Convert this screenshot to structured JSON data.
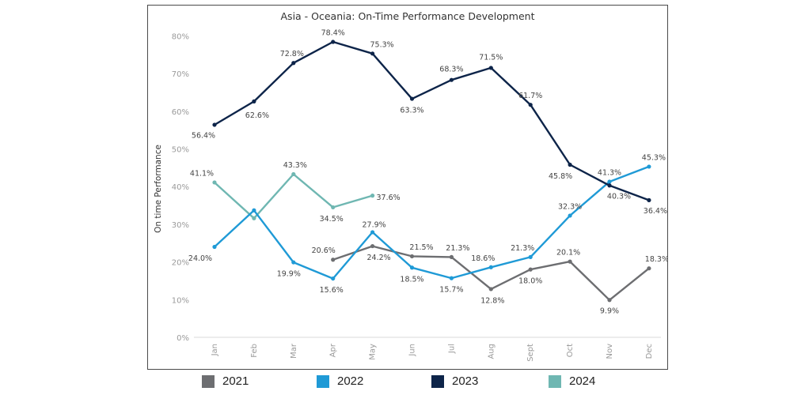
{
  "chart_data": {
    "type": "line",
    "title": "Asia - Oceania: On-Time Performance Development",
    "ylabel": "On time Performance",
    "xlabel": "",
    "categories": [
      "Jan",
      "Feb",
      "Mar",
      "Apr",
      "May",
      "Jun",
      "Jul",
      "Aug",
      "Sept",
      "Oct",
      "Nov",
      "Dec"
    ],
    "yticks": [
      "0%",
      "10%",
      "20%",
      "30%",
      "40%",
      "50%",
      "60%",
      "70%",
      "80%"
    ],
    "ylim": [
      0,
      85
    ],
    "grid": false,
    "legend_position": "bottom",
    "series": [
      {
        "name": "2021",
        "color": "#6d6e71",
        "values": [
          null,
          null,
          null,
          20.6,
          24.2,
          21.5,
          21.3,
          12.8,
          18.0,
          20.1,
          9.9,
          18.3
        ],
        "labels": [
          null,
          null,
          null,
          "20.6%",
          "24.2%",
          "21.5%",
          "21.3%",
          "12.8%",
          "18.0%",
          "20.1%",
          "9.9%",
          "18.3%"
        ]
      },
      {
        "name": "2022",
        "color": "#1f9ad6",
        "values": [
          24.0,
          33.7,
          19.9,
          15.6,
          27.9,
          18.5,
          15.7,
          18.6,
          21.3,
          32.3,
          41.3,
          45.3
        ],
        "labels": [
          "24.0%",
          null,
          "19.9%",
          "15.6%",
          "27.9%",
          "18.5%",
          "15.7%",
          "18.6%",
          "21.3%",
          "32.3%",
          "41.3%",
          "45.3%"
        ]
      },
      {
        "name": "2023",
        "color": "#0d2449",
        "values": [
          56.4,
          62.6,
          72.8,
          78.4,
          75.3,
          63.3,
          68.3,
          71.5,
          61.7,
          45.8,
          40.3,
          36.4
        ],
        "labels": [
          "56.4%",
          "62.6%",
          "72.8%",
          "78.4%",
          "75.3%",
          "63.3%",
          "68.3%",
          "71.5%",
          "61.7%",
          "45.8%",
          "40.3%",
          "36.4%"
        ]
      },
      {
        "name": "2024",
        "color": "#6fb7b2",
        "values": [
          41.1,
          31.6,
          43.3,
          34.5,
          37.6,
          null,
          null,
          null,
          null,
          null,
          null,
          null
        ],
        "labels": [
          "41.1%",
          null,
          "43.3%",
          "34.5%",
          "37.6%",
          null,
          null,
          null,
          null,
          null,
          null,
          null
        ]
      }
    ]
  }
}
